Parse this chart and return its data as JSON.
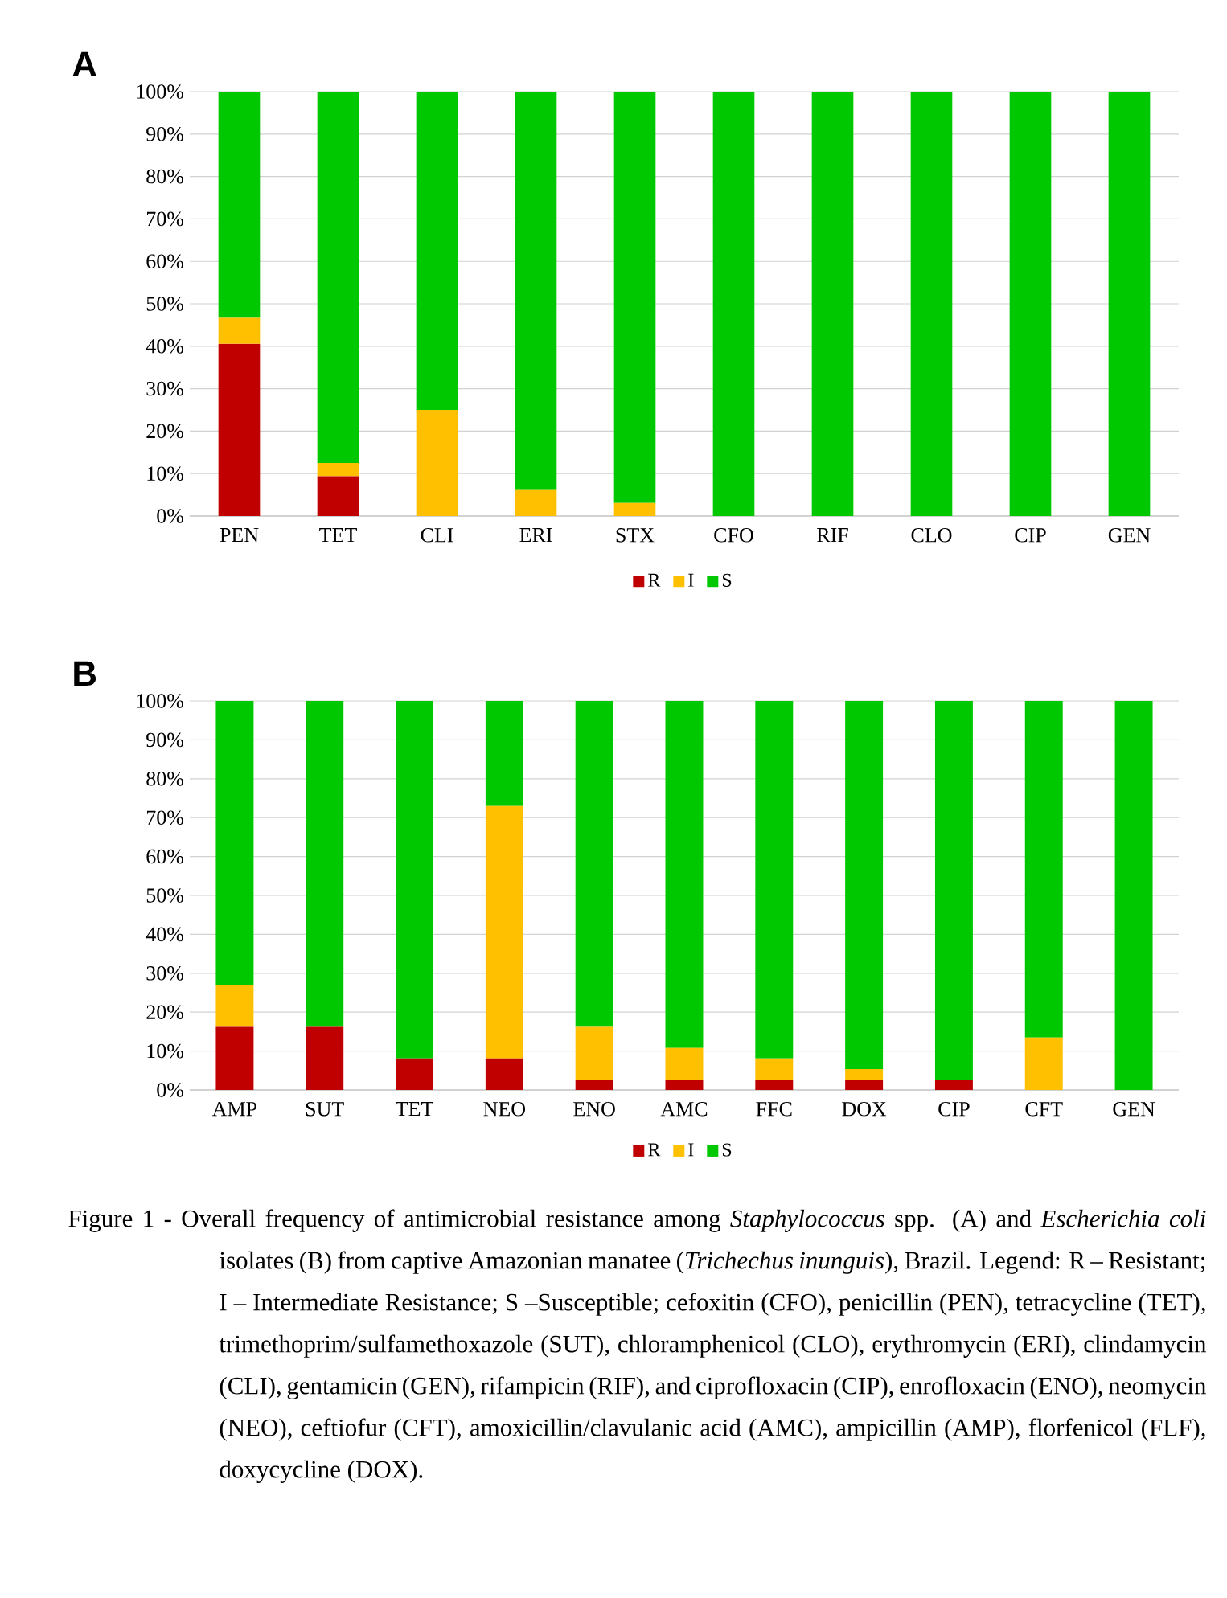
{
  "chart_data": [
    {
      "type": "bar",
      "stacked": true,
      "title": "A",
      "categories": [
        "PEN",
        "TET",
        "CLI",
        "ERI",
        "STX",
        "CFO",
        "RIF",
        "CLO",
        "CIP",
        "GEN"
      ],
      "series": [
        {
          "name": "R",
          "color": "#c00000",
          "values": [
            40.6,
            9.4,
            0,
            0,
            0,
            0,
            0,
            0,
            0,
            0
          ]
        },
        {
          "name": "I",
          "color": "#ffc000",
          "values": [
            6.3,
            3.1,
            25,
            6.3,
            3.1,
            0,
            0,
            0,
            0,
            0
          ]
        },
        {
          "name": "S",
          "color": "#00c800",
          "values": [
            53.1,
            87.5,
            75,
            93.7,
            96.9,
            100,
            100,
            100,
            100,
            100
          ]
        }
      ],
      "ylim": [
        0,
        100
      ],
      "yticks": [
        {
          "value": 0,
          "label": "0%"
        },
        {
          "value": 10,
          "label": "10%"
        },
        {
          "value": 20,
          "label": "20%"
        },
        {
          "value": 30,
          "label": "30%"
        },
        {
          "value": 40,
          "label": "40%"
        },
        {
          "value": 50,
          "label": "50%"
        },
        {
          "value": 60,
          "label": "60%"
        },
        {
          "value": 70,
          "label": "70%"
        },
        {
          "value": 80,
          "label": "80%"
        },
        {
          "value": 90,
          "label": "90%"
        },
        {
          "value": 100,
          "label": "100%"
        }
      ],
      "grid": "y",
      "legend": "bottom"
    },
    {
      "type": "bar",
      "stacked": true,
      "title": "B",
      "categories": [
        "AMP",
        "SUT",
        "TET",
        "NEO",
        "ENO",
        "AMC",
        "FFC",
        "DOX",
        "CIP",
        "CFT",
        "GEN"
      ],
      "series": [
        {
          "name": "R",
          "color": "#c00000",
          "values": [
            16.2,
            16.2,
            8.1,
            8.1,
            2.7,
            2.7,
            2.7,
            2.7,
            2.7,
            0,
            0
          ]
        },
        {
          "name": "I",
          "color": "#ffc000",
          "values": [
            10.8,
            0,
            0,
            64.9,
            13.5,
            8.1,
            5.4,
            2.7,
            0,
            13.5,
            0
          ]
        },
        {
          "name": "S",
          "color": "#00c800",
          "values": [
            73,
            83.8,
            91.9,
            27,
            83.8,
            89.2,
            91.9,
            94.6,
            97.3,
            86.5,
            100
          ]
        }
      ],
      "ylim": [
        0,
        100
      ],
      "yticks": [
        {
          "value": 0,
          "label": "0%"
        },
        {
          "value": 10,
          "label": "10%"
        },
        {
          "value": 20,
          "label": "20%"
        },
        {
          "value": 30,
          "label": "30%"
        },
        {
          "value": 40,
          "label": "40%"
        },
        {
          "value": 50,
          "label": "50%"
        },
        {
          "value": 60,
          "label": "60%"
        },
        {
          "value": 70,
          "label": "70%"
        },
        {
          "value": 80,
          "label": "80%"
        },
        {
          "value": 90,
          "label": "90%"
        },
        {
          "value": 100,
          "label": "100%"
        }
      ],
      "grid": "y",
      "legend": "bottom",
      "annotations": [
        "Figure 1 - Overall frequency of antimicrobial resistance among *Staphylococcus* spp. (A) and *Escherichia coli* isolates (B) from captive Amazonian manatee (*Trichechus inunguis*), Brazil. Legend: R – Resistant; I – Intermediate Resistance; S –Susceptible; cefoxitin (CFO), penicillin (PEN), tetracycline (TET), trimethoprim/sulfamethoxazole (SUT), chloramphenicol (CLO), erythromycin (ERI), clindamycin (CLI), gentamicin (GEN), rifampicin (RIF), and ciprofloxacin (CIP), enrofloxacin (ENO), neomycin (NEO), ceftiofur (CFT), amoxicillin/clavulanic acid (AMC), ampicillin (AMP), florfenicol (FLF), doxycycline (DOX)."
      ]
    }
  ]
}
